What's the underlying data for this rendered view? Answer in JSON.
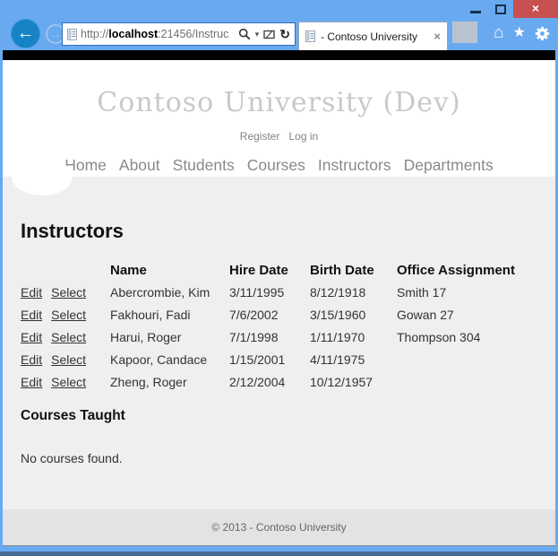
{
  "window": {
    "close_glyph": "×"
  },
  "browser": {
    "url_prefix": "http://",
    "url_host": "localhost",
    "url_rest": ":21456/Instruc",
    "tab_title": "- Contoso University",
    "tab_close_glyph": "×",
    "back_glyph": "←",
    "forward_glyph": "→",
    "caret_glyph": "▾",
    "refresh_glyph": "↻",
    "home_glyph": "⌂",
    "star_glyph": "★"
  },
  "site": {
    "title": "Contoso University (Dev)",
    "account_links": [
      "Register",
      "Log in"
    ],
    "nav": [
      "Home",
      "About",
      "Students",
      "Courses",
      "Instructors",
      "Departments"
    ]
  },
  "page": {
    "heading": "Instructors",
    "table": {
      "headers": [
        "Name",
        "Hire Date",
        "Birth Date",
        "Office Assignment"
      ],
      "action_labels": [
        "Edit",
        "Select"
      ],
      "rows": [
        {
          "name": "Abercrombie, Kim",
          "hire": "3/11/1995",
          "birth": "8/12/1918",
          "office": "Smith 17"
        },
        {
          "name": "Fakhouri, Fadi",
          "hire": "7/6/2002",
          "birth": "3/15/1960",
          "office": "Gowan 27"
        },
        {
          "name": "Harui, Roger",
          "hire": "7/1/1998",
          "birth": "1/11/1970",
          "office": "Thompson 304"
        },
        {
          "name": "Kapoor, Candace",
          "hire": "1/15/2001",
          "birth": "4/11/1975",
          "office": ""
        },
        {
          "name": "Zheng, Roger",
          "hire": "2/12/2004",
          "birth": "10/12/1957",
          "office": ""
        }
      ]
    },
    "courses_heading": "Courses Taught",
    "courses_empty": "No courses found.",
    "footer": "© 2013 - Contoso University"
  },
  "colors": {
    "frame_blue": "#69a9f0",
    "close_red": "#c75050",
    "back_button_blue": "#1583c6",
    "title_gray": "#c9c9c9",
    "body_gray": "#efefef",
    "footer_gray": "#e3e3e3",
    "bottom_strip": "#466b96"
  }
}
